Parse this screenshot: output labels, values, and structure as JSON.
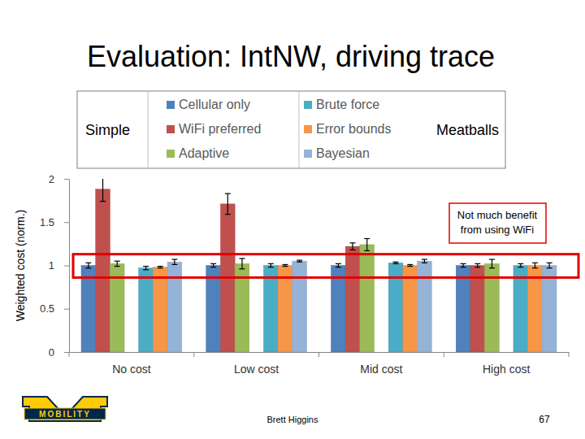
{
  "chart_data": {
    "type": "bar",
    "title": "Evaluation: IntNW, driving trace",
    "y_label": "Weighted cost (norm.)",
    "categories": [
      "No cost",
      "Low cost",
      "Mid cost",
      "High cost"
    ],
    "series": [
      {
        "name": "Cellular only",
        "group": "Simple",
        "color": "#4f81bd",
        "values": [
          1.0,
          1.0,
          1.0,
          1.0
        ],
        "errors": [
          0.03,
          0.02,
          0.02,
          0.02
        ]
      },
      {
        "name": "WiFi preferred",
        "group": "Simple",
        "color": "#c0504d",
        "values": [
          1.88,
          1.71,
          1.22,
          1.0
        ],
        "errors": [
          0.14,
          0.12,
          0.04,
          0.02
        ]
      },
      {
        "name": "Adaptive",
        "group": "Simple",
        "color": "#9bbb59",
        "values": [
          1.02,
          1.02,
          1.24,
          1.02
        ],
        "errors": [
          0.03,
          0.06,
          0.07,
          0.05
        ]
      },
      {
        "name": "Brute force",
        "group": "Meatballs",
        "color": "#4bacc6",
        "values": [
          0.97,
          1.0,
          1.03,
          1.0
        ],
        "errors": [
          0.02,
          0.02,
          0.01,
          0.02
        ]
      },
      {
        "name": "Error bounds",
        "group": "Meatballs",
        "color": "#f79646",
        "values": [
          0.98,
          1.0,
          1.0,
          1.0
        ],
        "errors": [
          0.01,
          0.01,
          0.01,
          0.03
        ]
      },
      {
        "name": "Bayesian",
        "group": "Meatballs",
        "color": "#95b3d7",
        "values": [
          1.04,
          1.05,
          1.05,
          1.0
        ],
        "errors": [
          0.03,
          0.01,
          0.02,
          0.03
        ]
      }
    ],
    "ylim": [
      0,
      2
    ],
    "yticks": [
      0,
      0.5,
      1,
      1.5,
      2
    ],
    "grid": false,
    "legend": "top",
    "annotations": [
      {
        "text": [
          "Not much benefit",
          "from using WiFi"
        ],
        "y_band": [
          0.86,
          1.13
        ]
      }
    ],
    "footer": {
      "author": "Brett Higgins",
      "page": 67,
      "logo": "MOBILITY"
    }
  }
}
